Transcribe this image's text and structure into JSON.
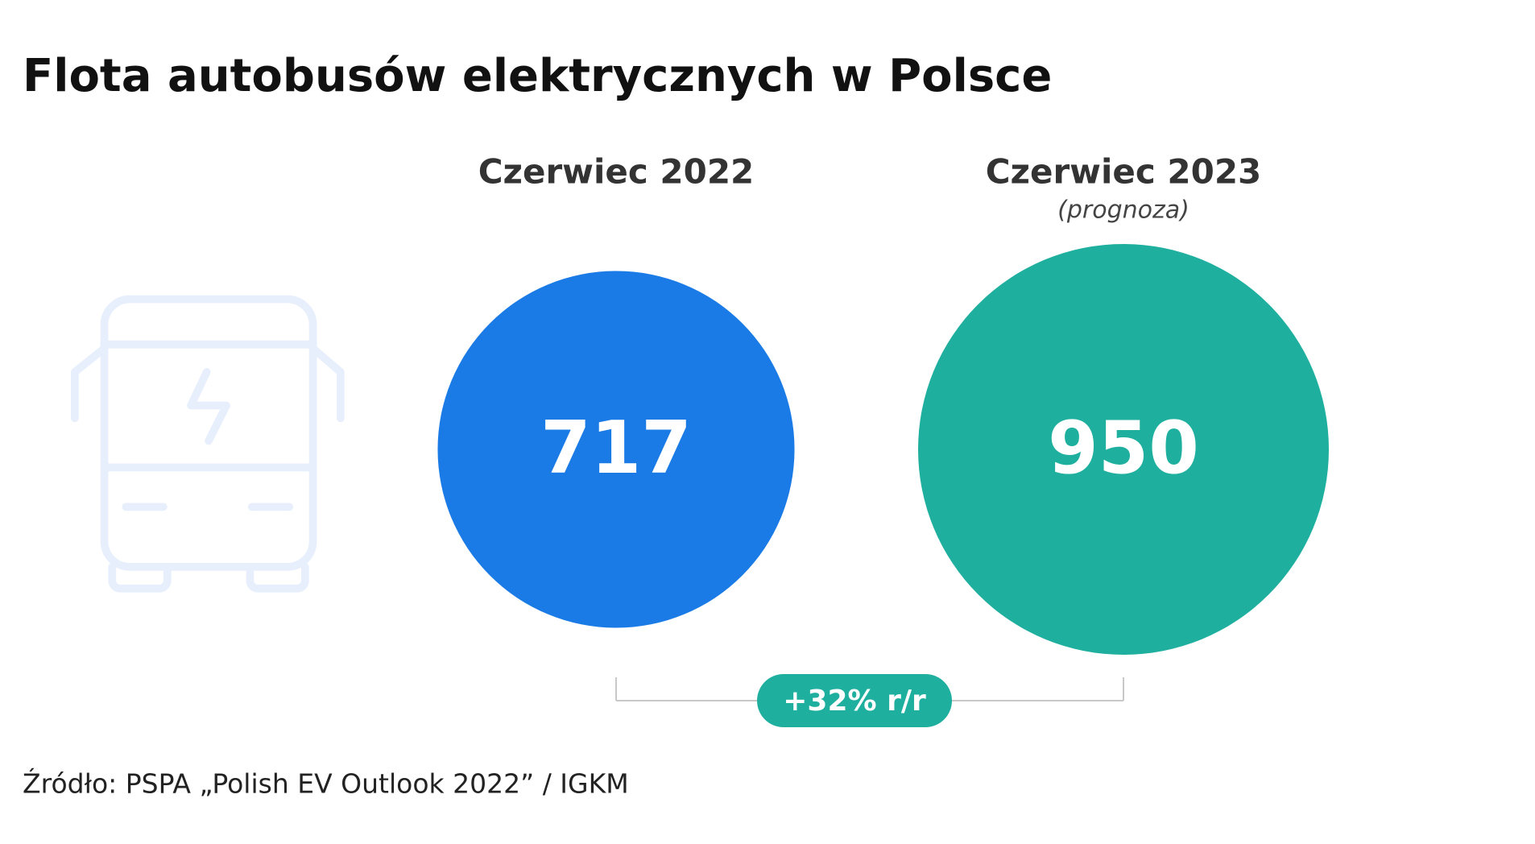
{
  "chart_data": {
    "type": "bubble",
    "title": "Flota autobusów elektrycznych w Polsce",
    "categories": [
      "Czerwiec 2022",
      "Czerwiec 2023"
    ],
    "category_notes": [
      null,
      "(prognoza)"
    ],
    "series": [
      {
        "name": null,
        "colors": [
          "#1a7be6",
          "#1eaf9f"
        ],
        "values": [
          717,
          950
        ]
      }
    ],
    "annotation": "+32% r/r",
    "annotation_color": "#1eaf9f",
    "source": "Źródło: PSPA „Polish EV Outlook 2022” / IGKM"
  }
}
